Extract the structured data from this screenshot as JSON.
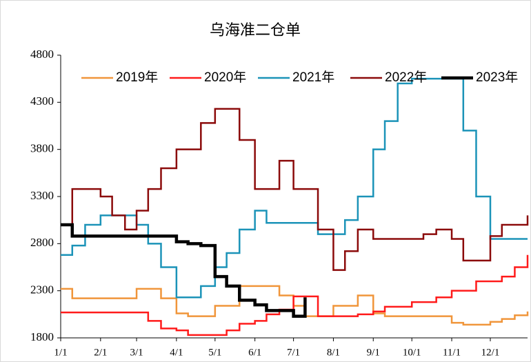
{
  "chart_data": {
    "type": "line",
    "title": "乌海准二仓单",
    "x": [
      "1/1",
      "1/10",
      "1/20",
      "2/1",
      "2/10",
      "2/20",
      "3/1",
      "3/10",
      "3/20",
      "4/1",
      "4/10",
      "4/20",
      "5/1",
      "5/10",
      "5/20",
      "6/1",
      "6/10",
      "6/20",
      "7/1",
      "7/10",
      "7/20",
      "8/1",
      "8/10",
      "8/20",
      "9/1",
      "9/10",
      "9/20",
      "10/1",
      "10/10",
      "10/20",
      "11/1",
      "11/10",
      "11/20",
      "12/1",
      "12/10",
      "12/20",
      "12/31"
    ],
    "xticks": [
      "1/1",
      "2/1",
      "3/1",
      "4/1",
      "5/1",
      "6/1",
      "7/1",
      "8/1",
      "9/1",
      "10/1",
      "11/1",
      "12/1"
    ],
    "ylim": [
      1800,
      4800
    ],
    "yticks": [
      1800,
      2300,
      2800,
      3300,
      3800,
      4300,
      4800
    ],
    "legend": "top",
    "grid": false,
    "series": [
      {
        "name": "2019年",
        "color": "#f0953a",
        "width": 2.5,
        "values": [
          2320,
          2220,
          2220,
          2220,
          2220,
          2220,
          2320,
          2320,
          2220,
          2060,
          2030,
          2030,
          2140,
          2140,
          2350,
          2350,
          2350,
          2250,
          2140,
          2030,
          2030,
          2140,
          2140,
          2250,
          2060,
          2030,
          2030,
          2030,
          2030,
          2030,
          1960,
          1940,
          1940,
          1970,
          2000,
          2040,
          2080
        ]
      },
      {
        "name": "2020年",
        "color": "#ff1a1a",
        "width": 2.5,
        "values": [
          2070,
          2070,
          2070,
          2070,
          2070,
          2070,
          2070,
          1980,
          1900,
          1880,
          1830,
          1830,
          1830,
          1880,
          1950,
          1980,
          2050,
          2100,
          2240,
          2240,
          2030,
          2030,
          2030,
          2050,
          2080,
          2130,
          2130,
          2180,
          2180,
          2230,
          2300,
          2300,
          2400,
          2400,
          2450,
          2550,
          2680
        ]
      },
      {
        "name": "2021年",
        "color": "#1b93b8",
        "width": 2.5,
        "values": [
          2680,
          2780,
          3000,
          3100,
          3100,
          3100,
          3000,
          2800,
          2550,
          2230,
          2230,
          2350,
          2550,
          2700,
          2950,
          3150,
          3020,
          3020,
          3020,
          3020,
          2900,
          2900,
          3050,
          3300,
          3800,
          4100,
          4500,
          4550,
          4550,
          4550,
          4550,
          4000,
          3300,
          2850,
          2850,
          2850,
          2850
        ]
      },
      {
        "name": "2022年",
        "color": "#8b0a0a",
        "width": 2.5,
        "values": [
          3000,
          3380,
          3380,
          3300,
          3100,
          2950,
          3150,
          3380,
          3600,
          3800,
          3800,
          4080,
          4230,
          4230,
          3900,
          3380,
          3380,
          3680,
          3380,
          3380,
          2950,
          2520,
          2720,
          2950,
          2850,
          2850,
          2850,
          2850,
          2900,
          2950,
          2850,
          2620,
          2620,
          2880,
          3000,
          3000,
          3100
        ]
      },
      {
        "name": "2023年",
        "color": "#000000",
        "width": 4.5,
        "values": [
          3000,
          2880,
          2880,
          2880,
          2880,
          2880,
          2880,
          2880,
          2880,
          2820,
          2800,
          2780,
          2450,
          2350,
          2200,
          2150,
          2090,
          2090,
          2030,
          2230,
          null,
          null,
          null,
          null,
          null,
          null,
          null,
          null,
          null,
          null,
          null,
          null,
          null,
          null,
          null,
          null,
          null
        ]
      }
    ]
  }
}
